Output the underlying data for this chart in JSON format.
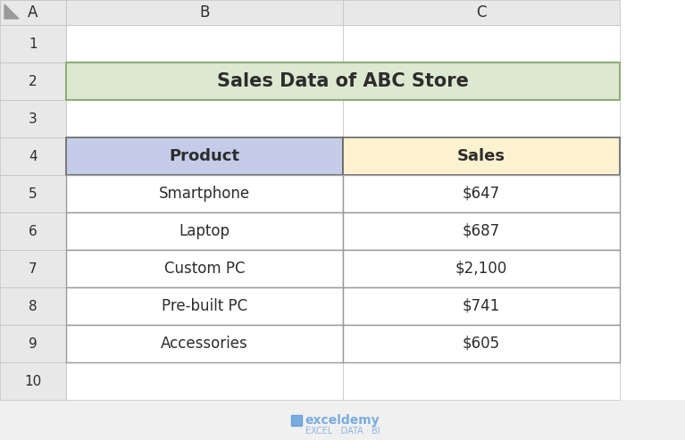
{
  "title": "Sales Data of ABC Store",
  "title_bg_color": "#dde8d0",
  "title_border_color": "#8fae78",
  "headers": [
    "Product",
    "Sales"
  ],
  "header_bg_colors": [
    "#c5cce8",
    "#fdf2d0"
  ],
  "rows": [
    [
      "Smartphone",
      "$647"
    ],
    [
      "Laptop",
      "$687"
    ],
    [
      "Custom PC",
      "$2,100"
    ],
    [
      "Pre-built PC",
      "$741"
    ],
    [
      "Accessories",
      "$605"
    ]
  ],
  "row_bg_color": "#ffffff",
  "cell_border_color": "#999999",
  "header_border_color": "#666666",
  "grid_line_color": "#c0c0c0",
  "col_header_bg": "#e8e8e8",
  "row_header_bg": "#e8e8e8",
  "spreadsheet_bg": "#ffffff",
  "outer_bg": "#f0f0f0",
  "col_labels": [
    "A",
    "B",
    "C"
  ],
  "row_labels": [
    "1",
    "2",
    "3",
    "4",
    "5",
    "6",
    "7",
    "8",
    "9",
    "10"
  ],
  "text_color": "#2d2d2d",
  "watermark_text": "exceldemy",
  "watermark_subtext": "EXCEL · DATA · BI",
  "watermark_color": "#4a90d9"
}
